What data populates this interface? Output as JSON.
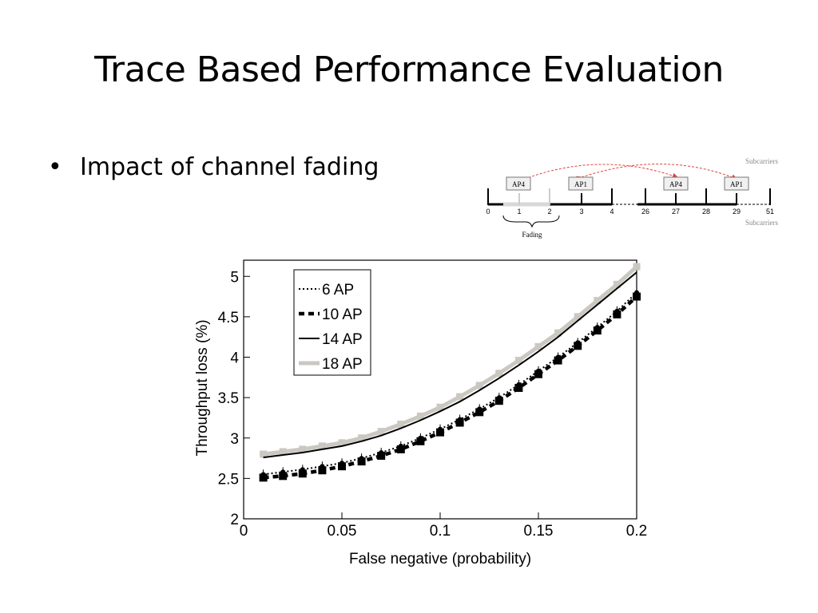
{
  "slide": {
    "title": "Trace Based Performance Evaluation",
    "bullet_marker": "•",
    "bullet_text": "Impact of channel fading"
  },
  "diagram": {
    "top_label": "Subcarriers",
    "bottom_label": "Subcarriers",
    "fading_label": "Fading",
    "boxes": [
      "AP4",
      "AP1",
      "AP4",
      "AP1"
    ],
    "ticks": [
      "0",
      "1",
      "2",
      "3",
      "4",
      "26",
      "27",
      "28",
      "29",
      "51"
    ],
    "arrow_color": "#e0413b"
  },
  "chart_data": {
    "type": "line",
    "xlabel": "False negative (probability)",
    "ylabel": "Throughput loss (%)",
    "xlim": [
      0,
      0.2
    ],
    "ylim": [
      2,
      5.2
    ],
    "xticks": [
      0,
      0.05,
      0.1,
      0.15,
      0.2
    ],
    "xtick_labels": [
      "0",
      "0.05",
      "0.1",
      "0.15",
      "0.2"
    ],
    "yticks": [
      2,
      2.5,
      3,
      3.5,
      4,
      4.5,
      5
    ],
    "ytick_labels": [
      "2",
      "2.5",
      "3",
      "3.5",
      "4",
      "4.5",
      "5"
    ],
    "legend_position": "top-left",
    "grid": false,
    "x": [
      0.01,
      0.02,
      0.03,
      0.04,
      0.05,
      0.06,
      0.07,
      0.08,
      0.09,
      0.1,
      0.11,
      0.12,
      0.13,
      0.14,
      0.15,
      0.16,
      0.17,
      0.18,
      0.19,
      0.2
    ],
    "series": [
      {
        "name": "6 AP",
        "style": "dotted",
        "color": "#000000",
        "values": [
          2.55,
          2.58,
          2.61,
          2.65,
          2.69,
          2.75,
          2.82,
          2.9,
          3.0,
          3.11,
          3.23,
          3.36,
          3.5,
          3.66,
          3.83,
          4.0,
          4.18,
          4.37,
          4.57,
          4.8
        ]
      },
      {
        "name": "10 AP",
        "style": "dashed",
        "color": "#000000",
        "values": [
          2.51,
          2.53,
          2.56,
          2.6,
          2.65,
          2.71,
          2.78,
          2.86,
          2.96,
          3.07,
          3.19,
          3.32,
          3.46,
          3.62,
          3.79,
          3.96,
          4.14,
          4.33,
          4.53,
          4.75
        ]
      },
      {
        "name": "14 AP",
        "style": "solid",
        "color": "#000000",
        "values": [
          2.76,
          2.79,
          2.82,
          2.86,
          2.9,
          2.96,
          3.03,
          3.12,
          3.22,
          3.33,
          3.45,
          3.59,
          3.74,
          3.9,
          4.07,
          4.25,
          4.45,
          4.65,
          4.85,
          5.05
        ]
      },
      {
        "name": "18 AP",
        "style": "solid-thick",
        "color": "#cbc8c2",
        "values": [
          2.8,
          2.83,
          2.86,
          2.9,
          2.94,
          3.0,
          3.08,
          3.17,
          3.27,
          3.38,
          3.51,
          3.65,
          3.8,
          3.96,
          4.13,
          4.3,
          4.5,
          4.7,
          4.9,
          5.12
        ]
      }
    ]
  }
}
